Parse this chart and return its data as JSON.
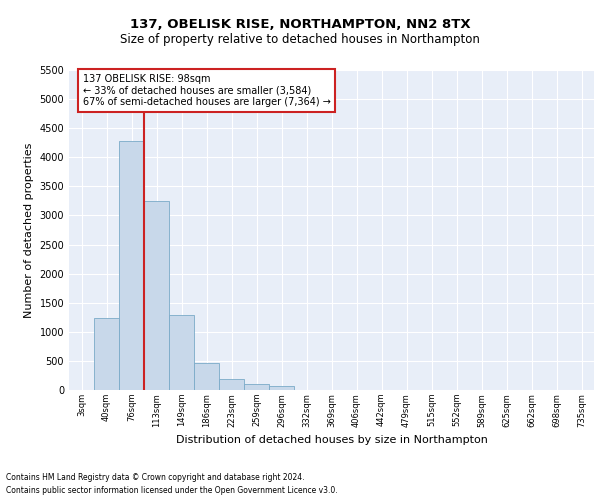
{
  "title1": "137, OBELISK RISE, NORTHAMPTON, NN2 8TX",
  "title2": "Size of property relative to detached houses in Northampton",
  "xlabel": "Distribution of detached houses by size in Northampton",
  "ylabel": "Number of detached properties",
  "footnote1": "Contains HM Land Registry data © Crown copyright and database right 2024.",
  "footnote2": "Contains public sector information licensed under the Open Government Licence v3.0.",
  "annotation_line1": "137 OBELISK RISE: 98sqm",
  "annotation_line2": "← 33% of detached houses are smaller (3,584)",
  "annotation_line3": "67% of semi-detached houses are larger (7,364) →",
  "bar_color": "#c8d8ea",
  "bar_edge_color": "#7aaac8",
  "bg_color": "#e8eef8",
  "grid_color": "#ffffff",
  "categories": [
    "3sqm",
    "40sqm",
    "76sqm",
    "113sqm",
    "149sqm",
    "186sqm",
    "223sqm",
    "259sqm",
    "296sqm",
    "332sqm",
    "369sqm",
    "406sqm",
    "442sqm",
    "479sqm",
    "515sqm",
    "552sqm",
    "589sqm",
    "625sqm",
    "662sqm",
    "698sqm",
    "735sqm"
  ],
  "values": [
    0,
    1230,
    4280,
    3240,
    1290,
    460,
    195,
    100,
    70,
    0,
    0,
    0,
    0,
    0,
    0,
    0,
    0,
    0,
    0,
    0,
    0
  ],
  "ylim": [
    0,
    5500
  ],
  "yticks": [
    0,
    500,
    1000,
    1500,
    2000,
    2500,
    3000,
    3500,
    4000,
    4500,
    5000,
    5500
  ],
  "vline_color": "#cc2222",
  "ann_edge_color": "#cc2222",
  "title1_fontsize": 9.5,
  "title2_fontsize": 8.5,
  "ylabel_fontsize": 8,
  "xlabel_fontsize": 8,
  "tick_fontsize": 7,
  "xtick_fontsize": 6,
  "ann_fontsize": 7,
  "footnote_fontsize": 5.5
}
